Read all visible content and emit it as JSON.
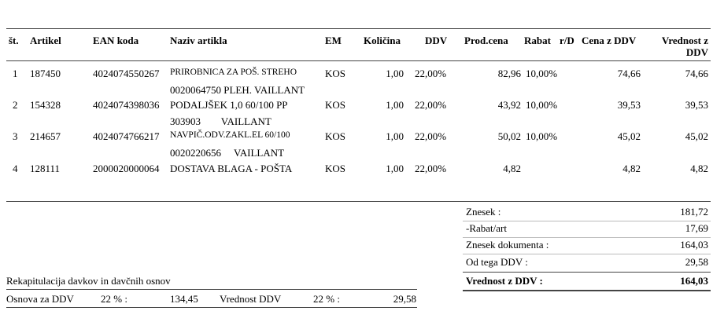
{
  "headers": {
    "st": "št.",
    "artikel": "Artikel",
    "ean": "EAN koda",
    "naziv": "Naziv artikla",
    "em": "EM",
    "kolicina": "Količina",
    "ddv": "DDV",
    "prodcena": "Prod.cena",
    "rabat": "Rabat",
    "rd": "r/D",
    "cena_ddv": "Cena z DDV",
    "vrednost_line1": "Vrednost z",
    "vrednost_line2": "DDV"
  },
  "rows": [
    {
      "st": "1",
      "artikel": "187450",
      "ean": "4024074550267",
      "naziv1": "PRIROBNICA ZA POŠ. STREHO",
      "naziv2": "0020064750 PLEH. VAILLANT",
      "em": "KOS",
      "kolicina": "1,00",
      "ddv": "22,00%",
      "prodcena": "82,96",
      "rabat": "10,00%",
      "cena_ddv": "74,66",
      "vrednost": "74,66"
    },
    {
      "st": "2",
      "artikel": "154328",
      "ean": "4024074398036",
      "naziv1": "PODALJŠEK 1,0 60/100 PP",
      "naziv2": "303903        VAILLANT",
      "em": "KOS",
      "kolicina": "1,00",
      "ddv": "22,00%",
      "prodcena": "43,92",
      "rabat": "10,00%",
      "cena_ddv": "39,53",
      "vrednost": "39,53"
    },
    {
      "st": "3",
      "artikel": "214657",
      "ean": "4024074766217",
      "naziv1": "NAVPIČ.ODV.ZAKL.EL 60/100",
      "naziv2": "0020220656     VAILLANT",
      "em": "KOS",
      "kolicina": "1,00",
      "ddv": "22,00%",
      "prodcena": "50,02",
      "rabat": "10,00%",
      "cena_ddv": "45,02",
      "vrednost": "45,02"
    },
    {
      "st": "4",
      "artikel": "128111",
      "ean": "2000020000064",
      "naziv1": "DOSTAVA BLAGA - POŠTA",
      "naziv2": "",
      "em": "KOS",
      "kolicina": "1,00",
      "ddv": "22,00%",
      "prodcena": "4,82",
      "rabat": "",
      "cena_ddv": "4,82",
      "vrednost": "4,82"
    }
  ],
  "totals": [
    {
      "label": "Znesek :",
      "value": "181,72"
    },
    {
      "label": "-Rabat/art",
      "value": "17,69"
    },
    {
      "label": "Znesek dokumenta :",
      "value": "164,03"
    },
    {
      "label": "Od tega DDV :",
      "value": "29,58"
    }
  ],
  "grand_total": {
    "label": "Vrednost z DDV :",
    "value": "164,03"
  },
  "recap": {
    "title": "Rekapitulacija davkov in davčnih osnov",
    "osnova_label": "Osnova za DDV",
    "osnova_rate": "22 % :",
    "osnova_value": "134,45",
    "vrednost_label": "Vrednost DDV",
    "vrednost_rate": "22 % :",
    "vrednost_value": "29,58"
  }
}
